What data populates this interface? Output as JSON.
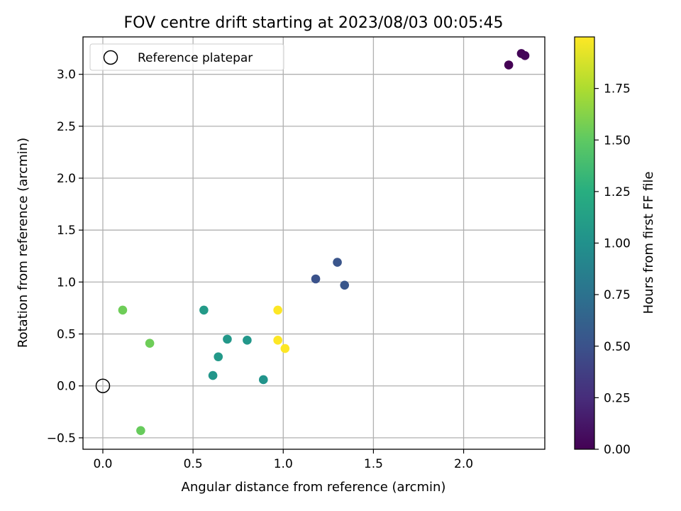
{
  "chart_data": {
    "type": "scatter",
    "title": "FOV centre drift starting at 2023/08/03 00:05:45",
    "xlabel": "Angular distance from reference (arcmin)",
    "ylabel": "Rotation from reference (arcmin)",
    "xlim": [
      -0.11,
      2.45
    ],
    "ylim": [
      -0.61,
      3.36
    ],
    "xticks": [
      0.0,
      0.5,
      1.0,
      1.5,
      2.0
    ],
    "xtick_labels": [
      "0.0",
      "0.5",
      "1.0",
      "1.5",
      "2.0"
    ],
    "yticks": [
      -0.5,
      0.0,
      0.5,
      1.0,
      1.5,
      2.0,
      2.5,
      3.0
    ],
    "ytick_labels": [
      "−0.5",
      "0.0",
      "0.5",
      "1.0",
      "1.5",
      "2.0",
      "2.5",
      "3.0"
    ],
    "grid": true,
    "legend": {
      "placement": "top-left",
      "entries": [
        {
          "label": "Reference platepar",
          "marker": "open-circle"
        }
      ]
    },
    "reference_point": {
      "x": 0.0,
      "y": 0.0
    },
    "colorbar": {
      "label": "Hours from first FF file",
      "colormap": "viridis",
      "range": [
        0.0,
        2.0
      ],
      "ticks": [
        0.0,
        0.25,
        0.5,
        0.75,
        1.0,
        1.25,
        1.5,
        1.75
      ],
      "tick_labels": [
        "0.00",
        "0.25",
        "0.50",
        "0.75",
        "1.00",
        "1.25",
        "1.50",
        "1.75"
      ]
    },
    "points": [
      {
        "x": 2.25,
        "y": 3.09,
        "hours": 0.0
      },
      {
        "x": 2.32,
        "y": 3.2,
        "hours": 0.02
      },
      {
        "x": 2.34,
        "y": 3.18,
        "hours": 0.03
      },
      {
        "x": 1.18,
        "y": 1.03,
        "hours": 0.5
      },
      {
        "x": 1.3,
        "y": 1.19,
        "hours": 0.52
      },
      {
        "x": 1.34,
        "y": 0.97,
        "hours": 0.53
      },
      {
        "x": 0.56,
        "y": 0.73,
        "hours": 1.08
      },
      {
        "x": 0.69,
        "y": 0.45,
        "hours": 1.06
      },
      {
        "x": 0.8,
        "y": 0.44,
        "hours": 1.05
      },
      {
        "x": 0.64,
        "y": 0.28,
        "hours": 1.07
      },
      {
        "x": 0.61,
        "y": 0.1,
        "hours": 1.04
      },
      {
        "x": 0.89,
        "y": 0.06,
        "hours": 1.03
      },
      {
        "x": 0.11,
        "y": 0.73,
        "hours": 1.55
      },
      {
        "x": 0.26,
        "y": 0.41,
        "hours": 1.55
      },
      {
        "x": 0.21,
        "y": -0.43,
        "hours": 1.53
      },
      {
        "x": 0.97,
        "y": 0.73,
        "hours": 2.0
      },
      {
        "x": 0.97,
        "y": 0.44,
        "hours": 2.0
      },
      {
        "x": 1.01,
        "y": 0.36,
        "hours": 2.0
      }
    ]
  }
}
